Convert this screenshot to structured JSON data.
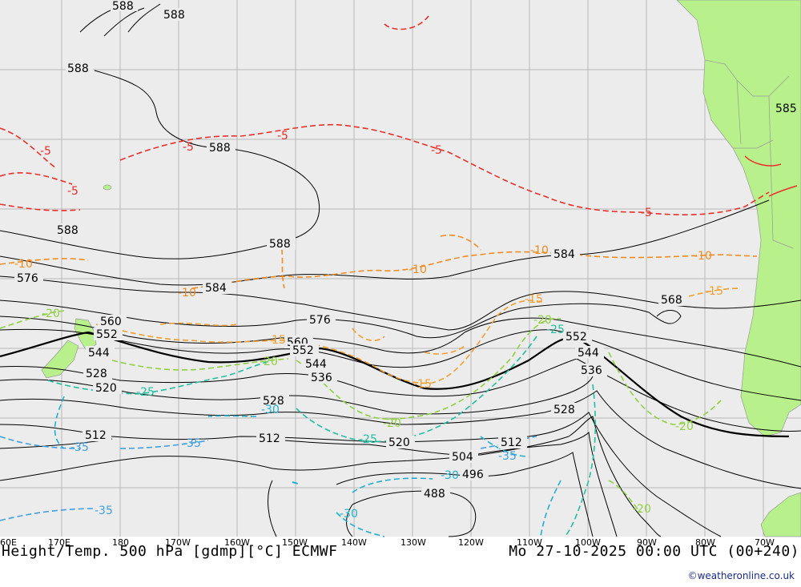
{
  "title_left": "Height/Temp. 500 hPa [gdmp][°C] ECMWF",
  "title_right": "Mo 27-10-2025 00:00 UTC (00+240)",
  "credit": "©weatheronline.co.uk",
  "lon_labels": [
    "60E",
    "170E",
    "180",
    "170W",
    "160W",
    "150W",
    "140W",
    "130W",
    "120W",
    "110W",
    "100W",
    "90W",
    "80W",
    "70W"
  ],
  "height_labels": [
    "588",
    "588",
    "588",
    "588",
    "588",
    "588",
    "584",
    "584",
    "576",
    "576",
    "568",
    "560",
    "560",
    "552",
    "552",
    "552",
    "544",
    "544",
    "544",
    "536",
    "536",
    "528",
    "528",
    "528",
    "520",
    "520",
    "512",
    "512",
    "512",
    "504",
    "496",
    "488",
    "585"
  ],
  "temp_labels": [
    "-5",
    "-5",
    "-5",
    "-5",
    "-5",
    "-5",
    "-10",
    "-10",
    "-10",
    "-10",
    "-10",
    "-15",
    "-15",
    "-15",
    "-15",
    "-20",
    "-20",
    "-20",
    "-20",
    "-20",
    "-20",
    "-25",
    "-25",
    "-25",
    "-30",
    "-30",
    "-30",
    "-35",
    "-35",
    "-35",
    "-35"
  ],
  "colors": {
    "ocean": "#ececec",
    "land": "#b8f08c",
    "height_contour": "#000000",
    "temp_m5": "#e8302a",
    "temp_m10": "#f08c20",
    "temp_m15": "#f0a030",
    "temp_m20": "#90d040",
    "temp_m25": "#20c0a0",
    "temp_m30": "#20b0d0",
    "temp_m35": "#40a0e0"
  }
}
